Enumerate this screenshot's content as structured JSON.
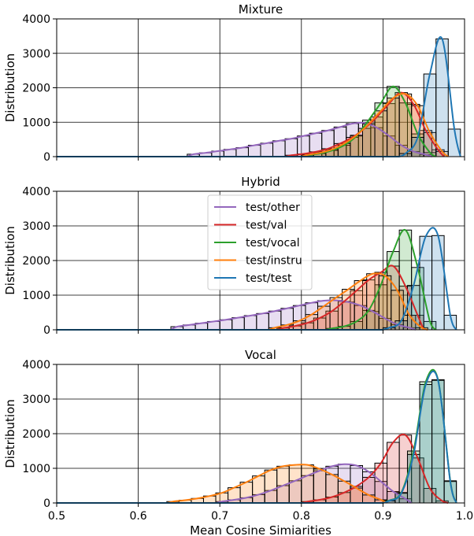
{
  "chart_data": [
    {
      "type": "histogram",
      "title": "Mixture",
      "ylabel": "Distribution",
      "xlabel": "",
      "xlim": [
        0.5,
        1.0
      ],
      "ylim": [
        0,
        4000
      ],
      "yticks": [
        "0",
        "1000",
        "2000",
        "3000",
        "4000"
      ],
      "xticks": [],
      "grid": true,
      "series": [
        {
          "color": "#9467bd",
          "bin_width": 0.015,
          "bins": [
            [
              0.66,
              70
            ],
            [
              0.675,
              110
            ],
            [
              0.69,
              160
            ],
            [
              0.705,
              210
            ],
            [
              0.72,
              260
            ],
            [
              0.735,
              330
            ],
            [
              0.75,
              390
            ],
            [
              0.765,
              460
            ],
            [
              0.78,
              520
            ],
            [
              0.795,
              600
            ],
            [
              0.81,
              680
            ],
            [
              0.825,
              760
            ],
            [
              0.84,
              860
            ],
            [
              0.855,
              960
            ],
            [
              0.87,
              980
            ],
            [
              0.885,
              840
            ],
            [
              0.9,
              600
            ],
            [
              0.915,
              330
            ],
            [
              0.93,
              150
            ],
            [
              0.945,
              60
            ]
          ]
        },
        {
          "color": "#d62728",
          "bin_width": 0.015,
          "bins": [
            [
              0.78,
              40
            ],
            [
              0.795,
              80
            ],
            [
              0.81,
              140
            ],
            [
              0.825,
              230
            ],
            [
              0.84,
              380
            ],
            [
              0.855,
              560
            ],
            [
              0.87,
              820
            ],
            [
              0.885,
              1150
            ],
            [
              0.9,
              1540
            ],
            [
              0.915,
              1860
            ],
            [
              0.93,
              1520
            ],
            [
              0.945,
              760
            ],
            [
              0.96,
              200
            ]
          ]
        },
        {
          "color": "#2ca02c",
          "bin_width": 0.015,
          "bins": [
            [
              0.8,
              40
            ],
            [
              0.815,
              90
            ],
            [
              0.83,
              180
            ],
            [
              0.845,
              330
            ],
            [
              0.86,
              600
            ],
            [
              0.875,
              1060
            ],
            [
              0.89,
              1560
            ],
            [
              0.905,
              2040
            ],
            [
              0.92,
              1560
            ],
            [
              0.935,
              660
            ],
            [
              0.95,
              120
            ]
          ]
        },
        {
          "color": "#ff7f0e",
          "bin_width": 0.015,
          "bins": [
            [
              0.8,
              50
            ],
            [
              0.815,
              110
            ],
            [
              0.83,
              210
            ],
            [
              0.845,
              380
            ],
            [
              0.86,
              620
            ],
            [
              0.875,
              950
            ],
            [
              0.89,
              1330
            ],
            [
              0.905,
              1700
            ],
            [
              0.92,
              1820
            ],
            [
              0.935,
              1480
            ],
            [
              0.95,
              700
            ],
            [
              0.965,
              150
            ]
          ]
        },
        {
          "color": "#1f77b4",
          "bin_width": 0.015,
          "bins": [
            [
              0.92,
              90
            ],
            [
              0.935,
              560
            ],
            [
              0.95,
              2400
            ],
            [
              0.965,
              3420
            ],
            [
              0.98,
              800
            ]
          ]
        }
      ]
    },
    {
      "type": "histogram",
      "title": "Hybrid",
      "ylabel": "Distribution",
      "xlabel": "",
      "xlim": [
        0.5,
        1.0
      ],
      "ylim": [
        0,
        4000
      ],
      "yticks": [
        "0",
        "1000",
        "2000",
        "3000",
        "4000"
      ],
      "xticks": [],
      "grid": true,
      "legend": {
        "position": "upper center",
        "entries": [
          {
            "label": "test/other",
            "color": "#9467bd"
          },
          {
            "label": "test/val",
            "color": "#d62728"
          },
          {
            "label": "test/vocal",
            "color": "#2ca02c"
          },
          {
            "label": "test/instru",
            "color": "#ff7f0e"
          },
          {
            "label": "test/test",
            "color": "#1f77b4"
          }
        ]
      },
      "series": [
        {
          "color": "#9467bd",
          "bin_width": 0.015,
          "bins": [
            [
              0.64,
              90
            ],
            [
              0.655,
              140
            ],
            [
              0.67,
              190
            ],
            [
              0.685,
              240
            ],
            [
              0.7,
              290
            ],
            [
              0.715,
              350
            ],
            [
              0.73,
              410
            ],
            [
              0.745,
              470
            ],
            [
              0.76,
              540
            ],
            [
              0.775,
              620
            ],
            [
              0.79,
              700
            ],
            [
              0.805,
              780
            ],
            [
              0.82,
              840
            ],
            [
              0.835,
              850
            ],
            [
              0.85,
              800
            ],
            [
              0.865,
              700
            ],
            [
              0.88,
              530
            ],
            [
              0.895,
              330
            ],
            [
              0.91,
              150
            ],
            [
              0.925,
              60
            ]
          ]
        },
        {
          "color": "#d62728",
          "bin_width": 0.015,
          "bins": [
            [
              0.77,
              50
            ],
            [
              0.785,
              110
            ],
            [
              0.8,
              200
            ],
            [
              0.815,
              340
            ],
            [
              0.83,
              540
            ],
            [
              0.845,
              820
            ],
            [
              0.86,
              1130
            ],
            [
              0.875,
              1440
            ],
            [
              0.89,
              1660
            ],
            [
              0.905,
              1840
            ],
            [
              0.92,
              1260
            ],
            [
              0.935,
              420
            ]
          ]
        },
        {
          "color": "#2ca02c",
          "bin_width": 0.015,
          "bins": [
            [
              0.83,
              40
            ],
            [
              0.845,
              100
            ],
            [
              0.86,
              240
            ],
            [
              0.875,
              560
            ],
            [
              0.89,
              1300
            ],
            [
              0.905,
              2260
            ],
            [
              0.92,
              2880
            ],
            [
              0.935,
              1800
            ],
            [
              0.95,
              240
            ]
          ]
        },
        {
          "color": "#ff7f0e",
          "bin_width": 0.015,
          "bins": [
            [
              0.76,
              60
            ],
            [
              0.775,
              140
            ],
            [
              0.79,
              260
            ],
            [
              0.805,
              440
            ],
            [
              0.82,
              680
            ],
            [
              0.835,
              930
            ],
            [
              0.85,
              1170
            ],
            [
              0.865,
              1420
            ],
            [
              0.88,
              1620
            ],
            [
              0.895,
              1560
            ],
            [
              0.91,
              1140
            ],
            [
              0.925,
              420
            ],
            [
              0.94,
              60
            ]
          ]
        },
        {
          "color": "#1f77b4",
          "bin_width": 0.015,
          "bins": [
            [
              0.9,
              60
            ],
            [
              0.915,
              260
            ],
            [
              0.93,
              1280
            ],
            [
              0.945,
              2700
            ],
            [
              0.96,
              2720
            ],
            [
              0.975,
              420
            ]
          ]
        }
      ]
    },
    {
      "type": "histogram",
      "title": "Vocal",
      "ylabel": "Distribution",
      "xlabel": "Mean Cosine Simiarities",
      "xlim": [
        0.5,
        1.0
      ],
      "ylim": [
        0,
        4000
      ],
      "yticks": [
        "0",
        "1000",
        "2000",
        "3000",
        "4000"
      ],
      "xticks": [
        "0.5",
        "0.6",
        "0.7",
        "0.8",
        "0.9",
        "1.0"
      ],
      "grid": true,
      "series": [
        {
          "color": "#9467bd",
          "bin_width": 0.015,
          "bins": [
            [
              0.695,
              40
            ],
            [
              0.71,
              90
            ],
            [
              0.725,
              150
            ],
            [
              0.74,
              240
            ],
            [
              0.755,
              360
            ],
            [
              0.77,
              500
            ],
            [
              0.785,
              640
            ],
            [
              0.8,
              790
            ],
            [
              0.815,
              930
            ],
            [
              0.83,
              1060
            ],
            [
              0.845,
              1120
            ],
            [
              0.86,
              1080
            ],
            [
              0.875,
              900
            ],
            [
              0.89,
              620
            ],
            [
              0.905,
              330
            ],
            [
              0.92,
              120
            ]
          ]
        },
        {
          "color": "#d62728",
          "bin_width": 0.015,
          "bins": [
            [
              0.8,
              40
            ],
            [
              0.815,
              90
            ],
            [
              0.83,
              170
            ],
            [
              0.845,
              300
            ],
            [
              0.86,
              480
            ],
            [
              0.875,
              740
            ],
            [
              0.89,
              1150
            ],
            [
              0.905,
              1750
            ],
            [
              0.92,
              1960
            ],
            [
              0.935,
              1300
            ],
            [
              0.95,
              420
            ],
            [
              0.965,
              60
            ]
          ]
        },
        {
          "color": "#2ca02c",
          "bin_width": 0.015,
          "bins": [
            [
              0.9,
              70
            ],
            [
              0.915,
              300
            ],
            [
              0.93,
              1500
            ],
            [
              0.945,
              3500
            ],
            [
              0.96,
              3560
            ],
            [
              0.975,
              640
            ]
          ]
        },
        {
          "color": "#ff7f0e",
          "bin_width": 0.015,
          "bins": [
            [
              0.635,
              40
            ],
            [
              0.65,
              80
            ],
            [
              0.665,
              130
            ],
            [
              0.68,
              200
            ],
            [
              0.695,
              290
            ],
            [
              0.71,
              440
            ],
            [
              0.725,
              600
            ],
            [
              0.74,
              780
            ],
            [
              0.755,
              950
            ],
            [
              0.77,
              1060
            ],
            [
              0.785,
              1100
            ],
            [
              0.8,
              1100
            ],
            [
              0.815,
              980
            ],
            [
              0.83,
              820
            ],
            [
              0.845,
              630
            ],
            [
              0.86,
              430
            ],
            [
              0.875,
              230
            ],
            [
              0.89,
              90
            ]
          ]
        },
        {
          "color": "#1f77b4",
          "bin_width": 0.015,
          "bins": [
            [
              0.9,
              60
            ],
            [
              0.915,
              280
            ],
            [
              0.93,
              1400
            ],
            [
              0.945,
              3420
            ],
            [
              0.96,
              3540
            ],
            [
              0.975,
              620
            ]
          ]
        }
      ]
    }
  ]
}
